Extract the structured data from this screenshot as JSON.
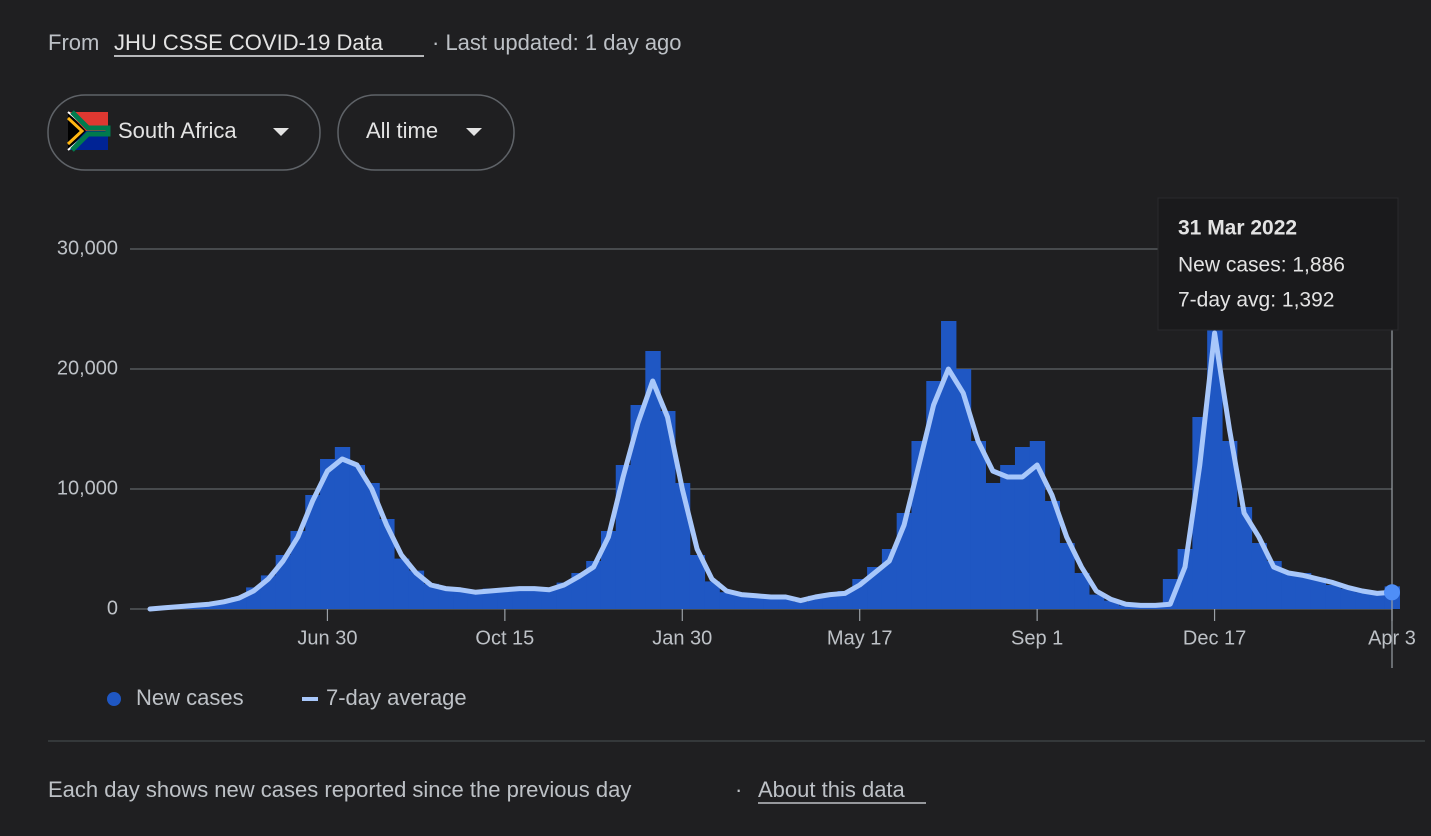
{
  "header": {
    "prefix": "From",
    "source": "JHU CSSE COVID-19 Data",
    "updated": "· Last updated: 1 day ago"
  },
  "filters": [
    "South Africa",
    "All time"
  ],
  "chart_data": {
    "type": "bar-line",
    "categories": [
      null,
      null,
      null,
      null,
      null,
      null,
      null,
      null,
      null,
      null,
      null,
      null,
      "Jun 30",
      null,
      null,
      null,
      null,
      null,
      null,
      null,
      null,
      null,
      null,
      null,
      "Oct 15",
      null,
      null,
      null,
      null,
      null,
      null,
      null,
      null,
      null,
      null,
      null,
      "Jan 30",
      null,
      null,
      null,
      null,
      null,
      null,
      null,
      null,
      null,
      null,
      null,
      "May 17",
      null,
      null,
      null,
      null,
      null,
      null,
      null,
      null,
      null,
      null,
      null,
      "Sep 1",
      null,
      null,
      null,
      null,
      null,
      null,
      null,
      null,
      null,
      null,
      null,
      "Dec 17",
      null,
      null,
      null,
      null,
      null,
      null,
      null,
      null,
      null,
      null,
      null,
      "Apr 3"
    ],
    "series": [
      {
        "name": "New cases",
        "color": "#1f57c3",
        "values": [
          0,
          80,
          250,
          300,
          450,
          700,
          1000,
          1800,
          2800,
          4500,
          6500,
          9500,
          12500,
          13500,
          12000,
          10500,
          7500,
          4200,
          3200,
          2100,
          1800,
          1500,
          1500,
          1700,
          1500,
          1800,
          1600,
          1700,
          2200,
          3000,
          4000,
          6500,
          12000,
          17000,
          21500,
          16500,
          10500,
          4500,
          2300,
          1400,
          1300,
          1200,
          1100,
          900,
          600,
          1100,
          1300,
          1500,
          2500,
          3500,
          5000,
          8000,
          14000,
          19000,
          24000,
          20000,
          14000,
          10500,
          12000,
          13500,
          14000,
          9000,
          5500,
          3000,
          1200,
          700,
          300,
          200,
          250,
          2500,
          5000,
          16000,
          23500,
          14000,
          8500,
          5500,
          4000,
          3000,
          3000,
          2600,
          2000,
          1700,
          1400,
          1200,
          1886
        ]
      },
      {
        "name": "7-day average",
        "color": "#a8c7fa",
        "values": [
          0,
          100,
          200,
          300,
          400,
          600,
          900,
          1500,
          2500,
          4000,
          6000,
          9000,
          11500,
          12500,
          12000,
          10000,
          7000,
          4500,
          3000,
          2000,
          1700,
          1600,
          1400,
          1500,
          1600,
          1700,
          1700,
          1600,
          2000,
          2700,
          3500,
          6000,
          11000,
          15500,
          19000,
          16000,
          10000,
          5000,
          2500,
          1500,
          1200,
          1100,
          1000,
          1000,
          700,
          1000,
          1200,
          1300,
          2000,
          3000,
          4000,
          7000,
          12000,
          17000,
          20000,
          18000,
          14000,
          11500,
          11000,
          11000,
          12000,
          9500,
          6000,
          3500,
          1500,
          800,
          400,
          300,
          300,
          400,
          3500,
          12000,
          23000,
          15000,
          8000,
          6000,
          3500,
          3000,
          2800,
          2500,
          2200,
          1800,
          1500,
          1300,
          1392
        ]
      }
    ],
    "ylim": [
      0,
      30000
    ],
    "yticks": [
      0,
      {
        "value": 10000,
        "label": "10,000"
      },
      {
        "value": 20000,
        "label": "20,000"
      },
      {
        "value": 30000,
        "label": "30,000"
      }
    ],
    "grid": true
  },
  "tooltip": {
    "date": "31 Mar 2022",
    "new_cases": "New cases: 1,886",
    "avg": "7-day avg: 1,392"
  },
  "footer": {
    "note": "Each day shows new cases reported since the previous day",
    "separator": "·",
    "link": "About this data"
  }
}
